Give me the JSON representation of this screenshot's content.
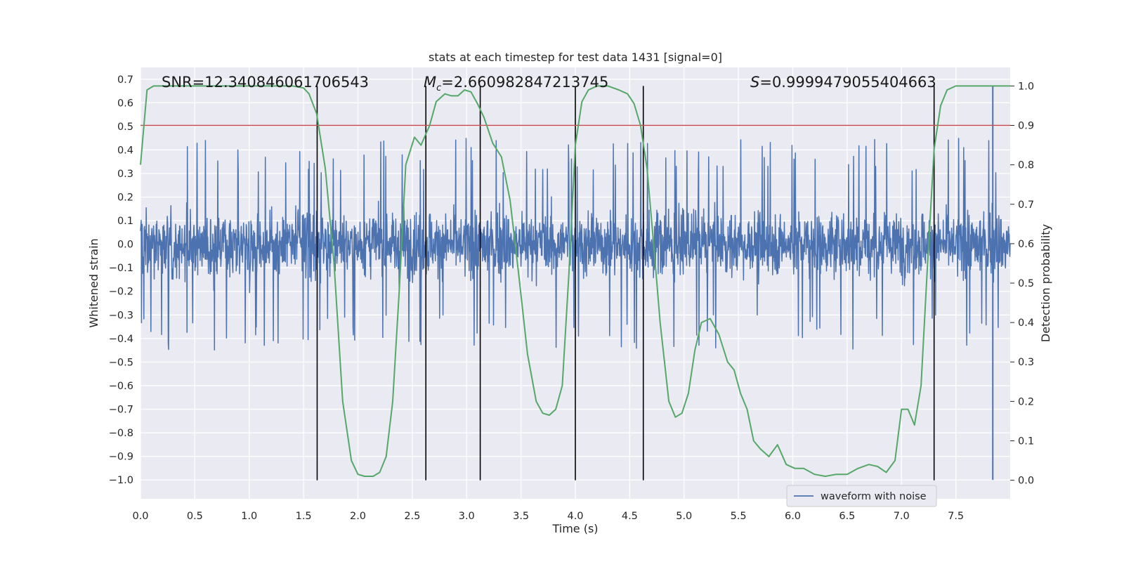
{
  "chart_data": {
    "type": "line",
    "title": "stats at each timestep for test data 1431 [signal=0]",
    "xlabel": "Time (s)",
    "ylabel_left": "Whitened strain",
    "ylabel_right": "Detection probability",
    "xlim": [
      0.0,
      8.0
    ],
    "ylim_left": [
      -1.08,
      0.75
    ],
    "ylim_right": [
      -0.047,
      1.047
    ],
    "xticks": [
      "0.0",
      "0.5",
      "1.0",
      "1.5",
      "2.0",
      "2.5",
      "3.0",
      "3.5",
      "4.0",
      "4.5",
      "5.0",
      "5.5",
      "6.0",
      "6.5",
      "7.0",
      "7.5"
    ],
    "yticks_left": [
      "0.7",
      "0.6",
      "0.5",
      "0.4",
      "0.3",
      "0.2",
      "0.1",
      "0.0",
      "−0.1",
      "−0.2",
      "−0.3",
      "−0.4",
      "−0.5",
      "−0.6",
      "−0.7",
      "−0.8",
      "−0.9",
      "−1.0"
    ],
    "yticks_right": [
      "1.0",
      "0.9",
      "0.8",
      "0.7",
      "0.6",
      "0.5",
      "0.4",
      "0.3",
      "0.2",
      "0.1",
      "0.0"
    ],
    "grid": true,
    "legend_position": "lower-right",
    "annotations": {
      "snr": "SNR=12.340846061706543",
      "mc": "=2.660982847213745",
      "mc_symbol": "M",
      "mc_sub": "c",
      "s": "=0.9999479055404663",
      "s_symbol": "S"
    },
    "series": [
      {
        "name": "waveform with noise",
        "kind": "noise",
        "axis": "left",
        "color": "#4c72b0",
        "typical_amplitude": 0.17,
        "spike_max": 0.45,
        "tail_spike": {
          "x": 7.84,
          "min": -1.0,
          "max": 0.67
        }
      },
      {
        "kind": "probability",
        "axis": "right",
        "color": "#55a868",
        "x": [
          0.0,
          0.06,
          0.12,
          0.2,
          0.4,
          0.8,
          1.2,
          1.4,
          1.5,
          1.55,
          1.62,
          1.7,
          1.78,
          1.86,
          1.94,
          2.0,
          2.06,
          2.14,
          2.2,
          2.26,
          2.32,
          2.38,
          2.44,
          2.52,
          2.58,
          2.66,
          2.72,
          2.8,
          2.86,
          2.92,
          2.98,
          3.04,
          3.1,
          3.16,
          3.24,
          3.32,
          3.4,
          3.48,
          3.56,
          3.64,
          3.7,
          3.76,
          3.82,
          3.88,
          3.94,
          4.0,
          4.06,
          4.12,
          4.2,
          4.3,
          4.4,
          4.48,
          4.54,
          4.6,
          4.66,
          4.72,
          4.78,
          4.86,
          4.92,
          4.98,
          5.04,
          5.1,
          5.16,
          5.24,
          5.32,
          5.4,
          5.46,
          5.52,
          5.58,
          5.64,
          5.7,
          5.78,
          5.86,
          5.94,
          6.02,
          6.1,
          6.2,
          6.3,
          6.4,
          6.5,
          6.6,
          6.7,
          6.78,
          6.86,
          6.94,
          7.0,
          7.06,
          7.12,
          7.18,
          7.24,
          7.3,
          7.36,
          7.42,
          7.5,
          7.6,
          8.0
        ],
        "y": [
          0.8,
          0.99,
          1.0,
          1.0,
          1.0,
          1.0,
          1.0,
          1.0,
          0.995,
          0.98,
          0.93,
          0.79,
          0.55,
          0.2,
          0.05,
          0.015,
          0.01,
          0.01,
          0.02,
          0.06,
          0.2,
          0.48,
          0.8,
          0.87,
          0.85,
          0.9,
          0.96,
          0.98,
          0.975,
          0.975,
          0.99,
          0.985,
          0.955,
          0.92,
          0.855,
          0.82,
          0.71,
          0.52,
          0.32,
          0.2,
          0.17,
          0.165,
          0.18,
          0.24,
          0.52,
          0.85,
          0.96,
          0.99,
          1.0,
          1.0,
          0.99,
          0.98,
          0.955,
          0.9,
          0.79,
          0.6,
          0.4,
          0.2,
          0.16,
          0.17,
          0.22,
          0.33,
          0.4,
          0.41,
          0.37,
          0.3,
          0.28,
          0.22,
          0.18,
          0.1,
          0.08,
          0.06,
          0.09,
          0.04,
          0.03,
          0.03,
          0.015,
          0.01,
          0.015,
          0.015,
          0.03,
          0.04,
          0.035,
          0.02,
          0.05,
          0.18,
          0.18,
          0.14,
          0.24,
          0.55,
          0.84,
          0.95,
          0.99,
          1.0,
          1.0,
          1.0
        ]
      },
      {
        "kind": "threshold",
        "axis": "right",
        "color": "#c44e52",
        "y": 0.9
      }
    ],
    "vlines": {
      "color": "#000000",
      "x": [
        1.625,
        2.625,
        3.125,
        4.0,
        4.625,
        7.3
      ],
      "ymin": 0.0,
      "ymax": 1.0
    }
  }
}
